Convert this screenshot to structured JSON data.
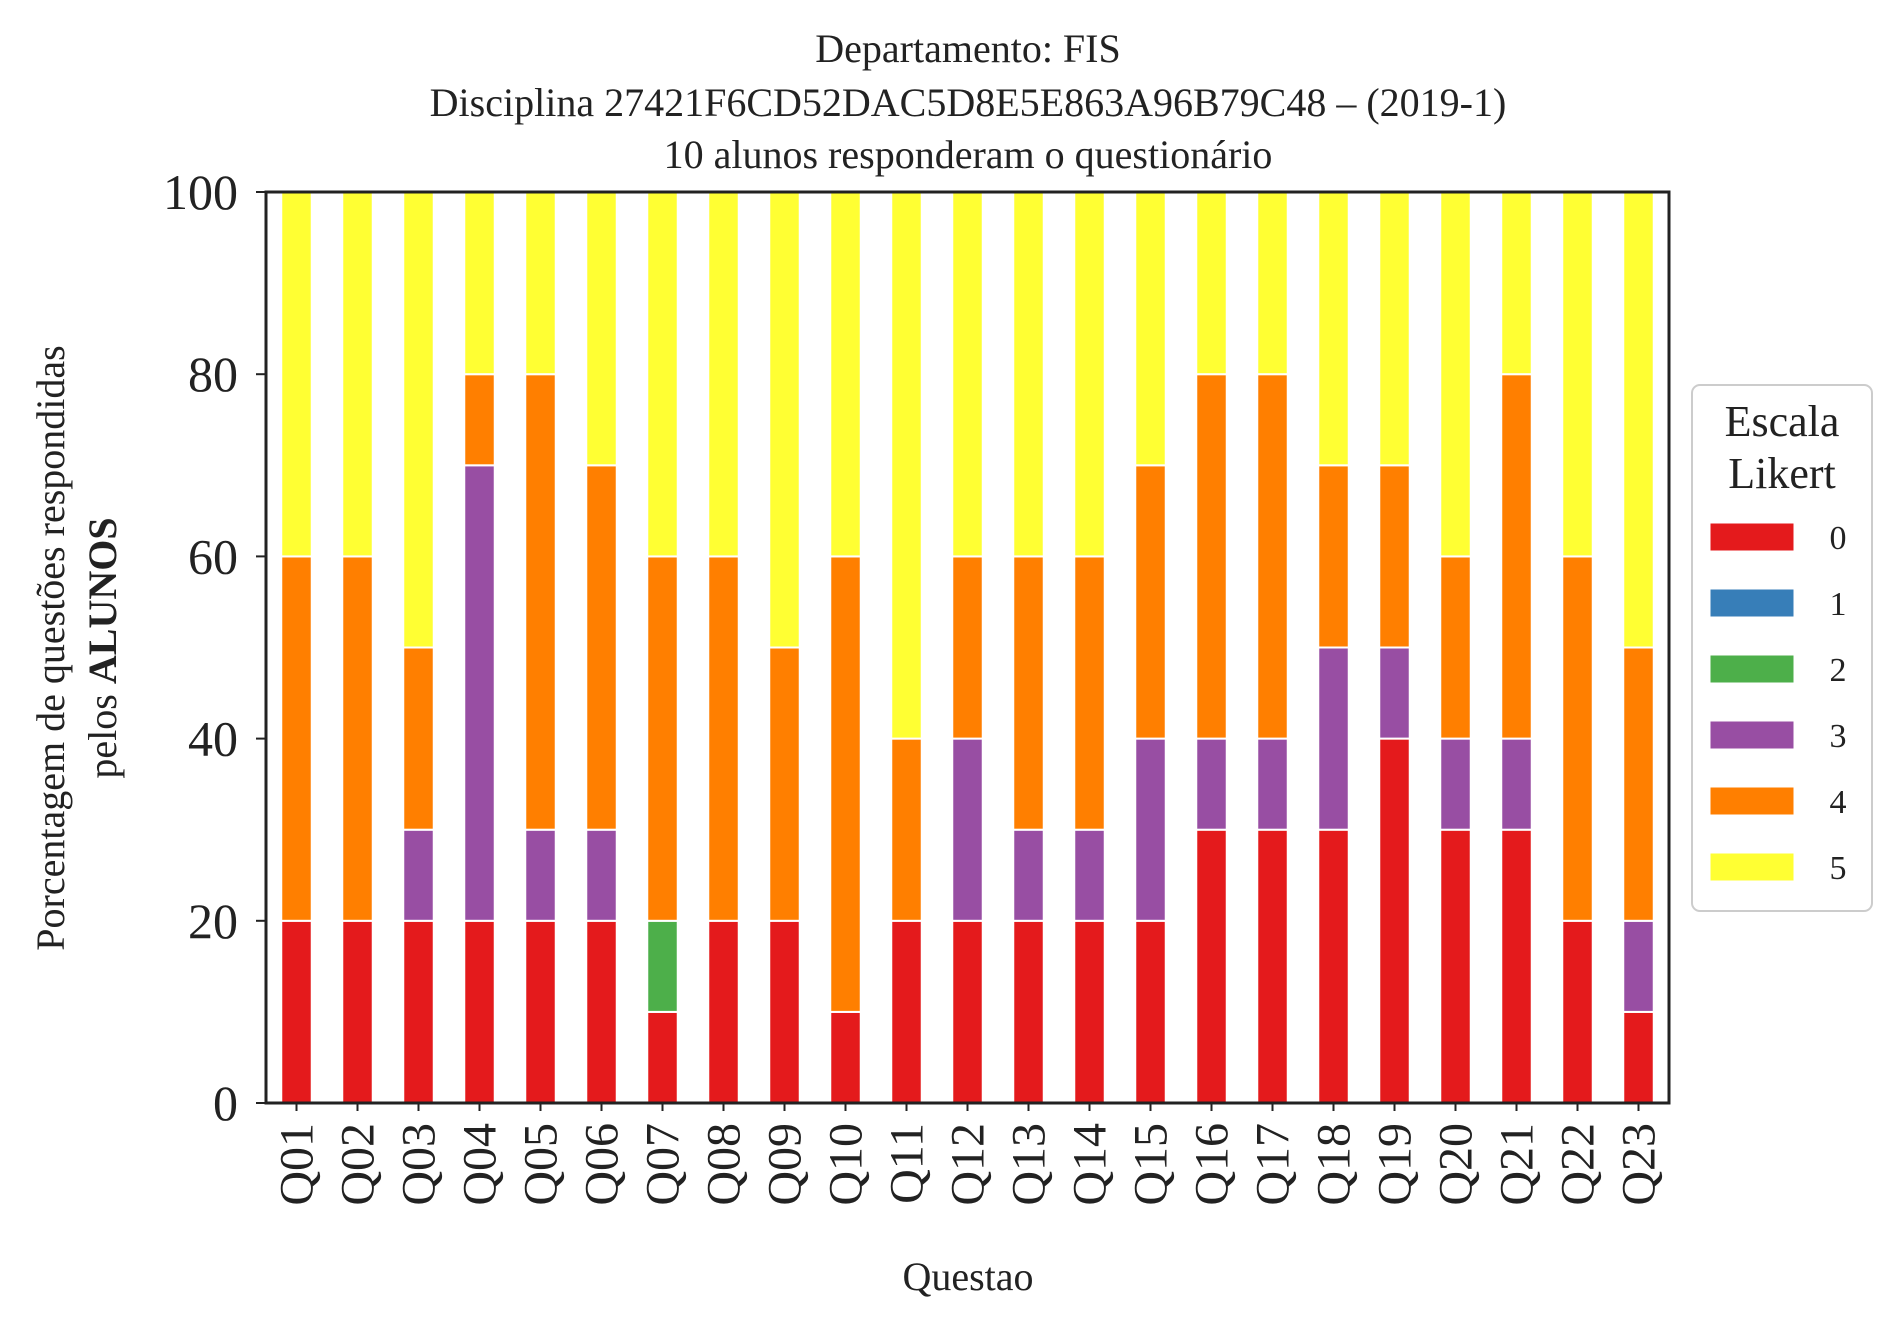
{
  "chart_data": {
    "type": "bar",
    "stacked": true,
    "title_lines": [
      "Departamento: FIS",
      "Disciplina 27421F6CD52DAC5D8E5E863A96B79C48 – (2019-1)",
      "10 alunos responderam o questionário"
    ],
    "xlabel": "Questao",
    "ylabel_line1": "Porcentagem de questões respondidas",
    "ylabel_line2_prefix": "pelos ",
    "ylabel_line2_bold": "ALUNOS",
    "ylim": [
      0,
      100
    ],
    "yticks": [
      "0",
      "20",
      "40",
      "60",
      "80",
      "100"
    ],
    "categories": [
      "Q01",
      "Q02",
      "Q03",
      "Q04",
      "Q05",
      "Q06",
      "Q07",
      "Q08",
      "Q09",
      "Q10",
      "Q11",
      "Q12",
      "Q13",
      "Q14",
      "Q15",
      "Q16",
      "Q17",
      "Q18",
      "Q19",
      "Q20",
      "Q21",
      "Q22",
      "Q23"
    ],
    "legend": {
      "title_lines": [
        "Escala",
        "Likert"
      ],
      "position": "right"
    },
    "series": [
      {
        "name": "0",
        "color": "#e41a1c",
        "values": [
          20,
          20,
          20,
          20,
          20,
          20,
          10,
          20,
          20,
          10,
          20,
          20,
          20,
          20,
          20,
          30,
          30,
          30,
          40,
          30,
          30,
          20,
          10
        ]
      },
      {
        "name": "1",
        "color": "#377eb8",
        "values": [
          0,
          0,
          0,
          0,
          0,
          0,
          0,
          0,
          0,
          0,
          0,
          0,
          0,
          0,
          0,
          0,
          0,
          0,
          0,
          0,
          0,
          0,
          0
        ]
      },
      {
        "name": "2",
        "color": "#4daf4a",
        "values": [
          0,
          0,
          0,
          0,
          0,
          0,
          10,
          0,
          0,
          0,
          0,
          0,
          0,
          0,
          0,
          0,
          0,
          0,
          0,
          0,
          0,
          0,
          0
        ]
      },
      {
        "name": "3",
        "color": "#984ea3",
        "values": [
          0,
          0,
          10,
          50,
          10,
          10,
          0,
          0,
          0,
          0,
          0,
          20,
          10,
          10,
          20,
          10,
          10,
          20,
          10,
          10,
          10,
          0,
          10
        ]
      },
      {
        "name": "4",
        "color": "#ff7f00",
        "values": [
          40,
          40,
          20,
          10,
          50,
          40,
          40,
          40,
          30,
          50,
          20,
          20,
          30,
          30,
          30,
          40,
          40,
          20,
          20,
          20,
          40,
          40,
          30
        ]
      },
      {
        "name": "5",
        "color": "#ffff33",
        "values": [
          40,
          40,
          50,
          20,
          20,
          30,
          40,
          40,
          50,
          40,
          60,
          40,
          40,
          40,
          30,
          20,
          20,
          30,
          30,
          40,
          20,
          40,
          50
        ]
      }
    ]
  }
}
